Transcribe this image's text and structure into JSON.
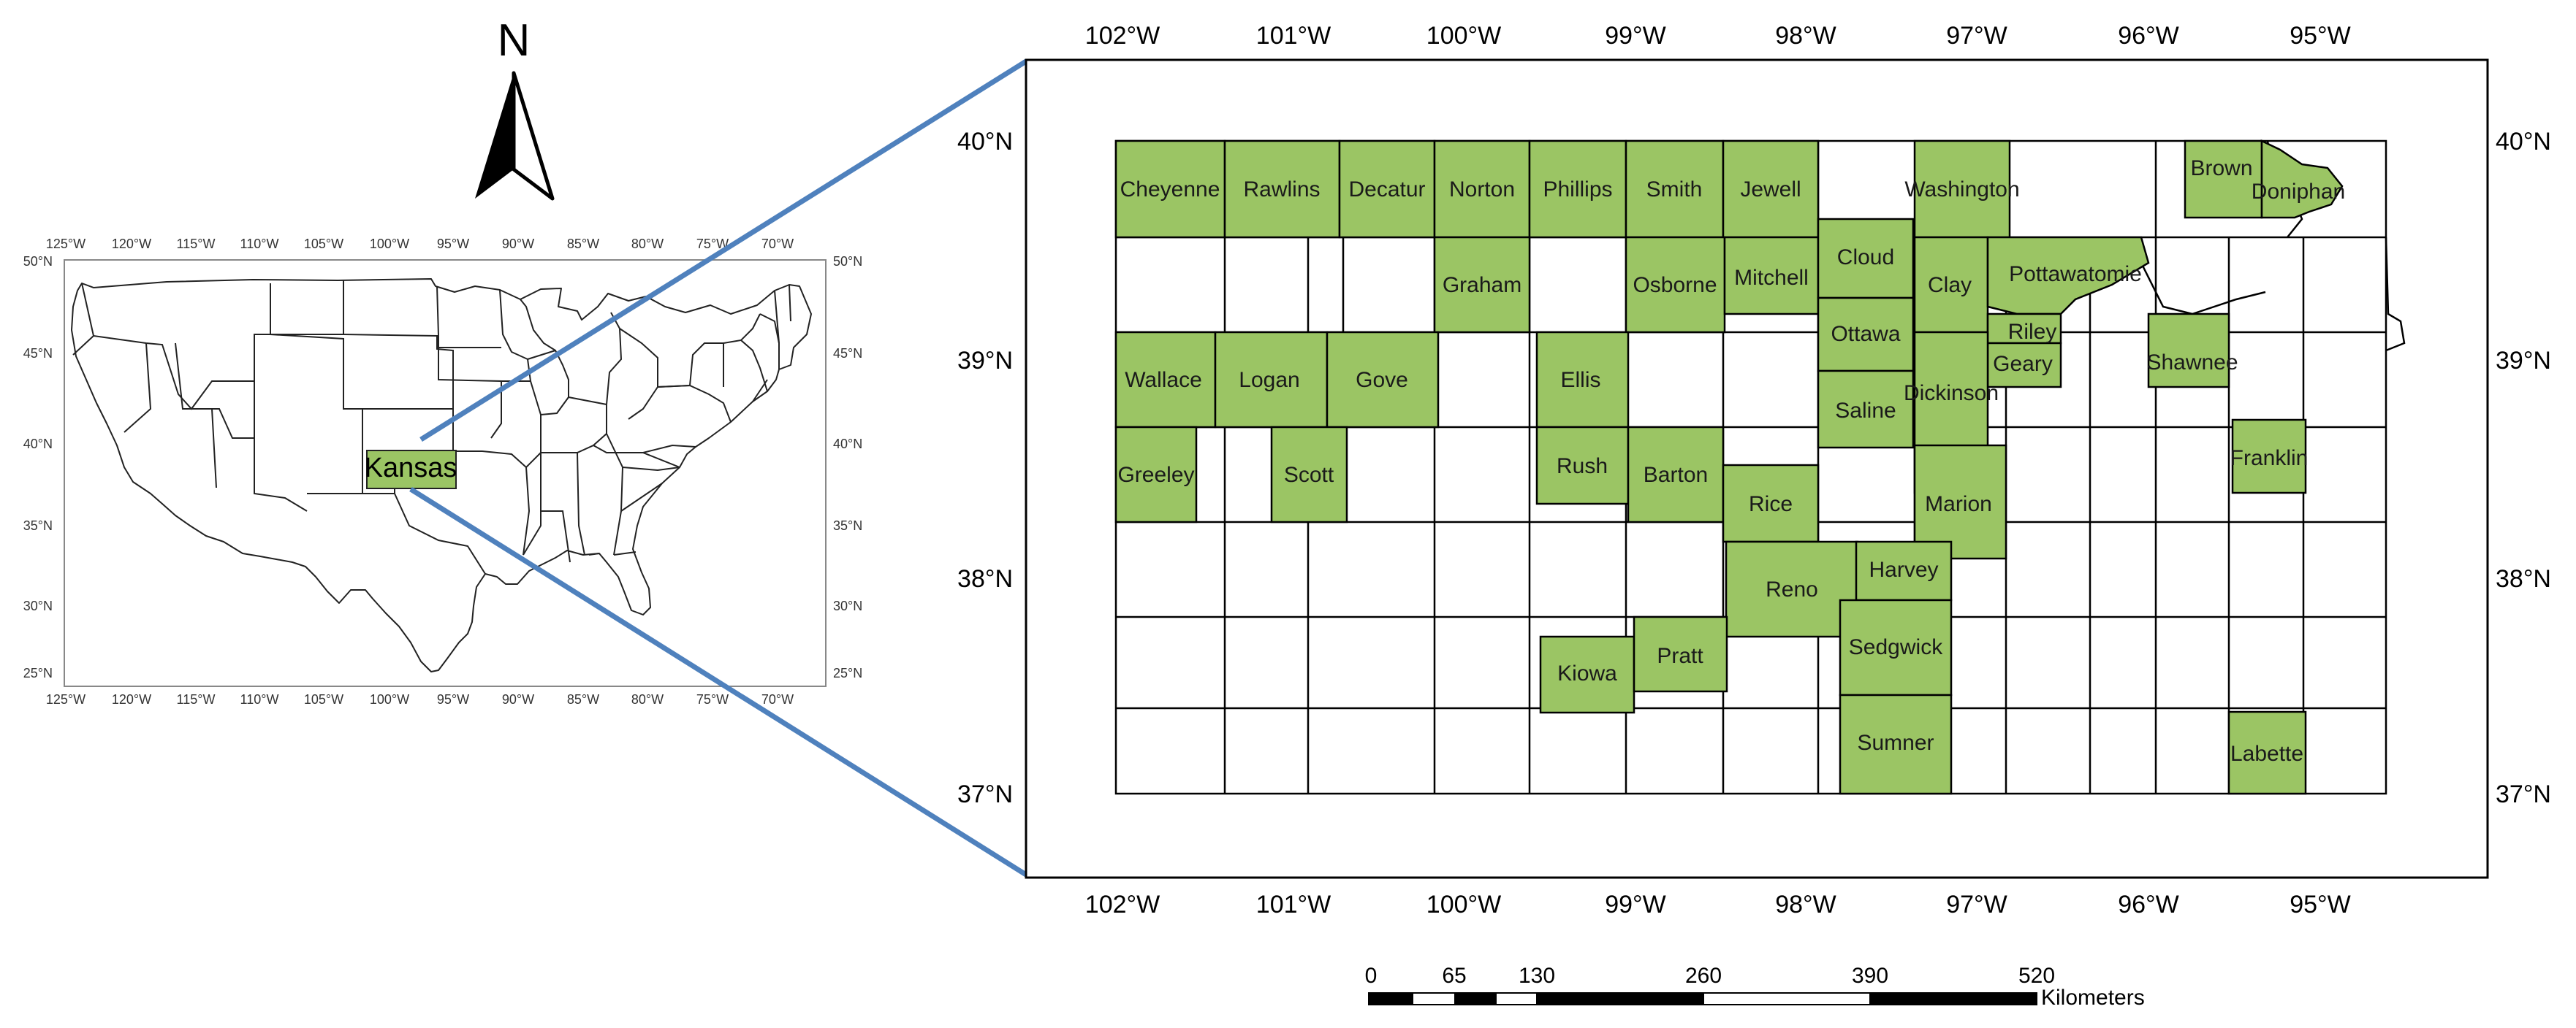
{
  "colors": {
    "highlight": "#9bc564",
    "border": "#000000",
    "connector": "#4f81bd",
    "background": "#ffffff"
  },
  "north_arrow": {
    "label": "N",
    "icon": "north-arrow-icon"
  },
  "us_map": {
    "state_label": "Kansas",
    "lon_ticks": [
      "125°W",
      "120°W",
      "115°W",
      "110°W",
      "105°W",
      "100°W",
      "95°W",
      "90°W",
      "85°W",
      "80°W",
      "75°W",
      "70°W"
    ],
    "lat_ticks": [
      "50°N",
      "45°N",
      "40°N",
      "35°N",
      "30°N",
      "25°N"
    ]
  },
  "kansas_map": {
    "lon_ticks": [
      "102°W",
      "101°W",
      "100°W",
      "99°W",
      "98°W",
      "97°W",
      "96°W",
      "95°W"
    ],
    "lat_ticks": [
      "40°N",
      "39°N",
      "38°N",
      "37°N"
    ],
    "highlighted_counties": [
      "Cheyenne",
      "Rawlins",
      "Decatur",
      "Norton",
      "Phillips",
      "Smith",
      "Jewell",
      "Washington",
      "Brown",
      "Doniphan",
      "Graham",
      "Osborne",
      "Mitchell",
      "Cloud",
      "Clay",
      "Pottawatomie",
      "Riley",
      "Geary",
      "Ottawa",
      "Dickinson",
      "Saline",
      "Shawnee",
      "Wallace",
      "Logan",
      "Gove",
      "Ellis",
      "Franklin",
      "Greeley",
      "Scott",
      "Rush",
      "Barton",
      "Rice",
      "Marion",
      "Reno",
      "Harvey",
      "Kiowa",
      "Pratt",
      "Sedgwick",
      "Sumner",
      "Labette"
    ]
  },
  "scale_bar": {
    "ticks": [
      "0",
      "65",
      "130",
      "260",
      "390",
      "520"
    ],
    "unit": "Kilometers"
  }
}
